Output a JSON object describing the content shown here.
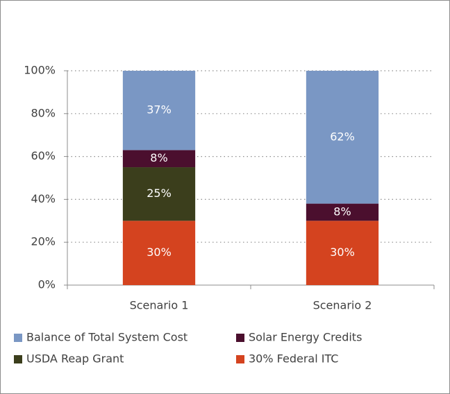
{
  "chart_data": {
    "type": "stacked_bar",
    "categories": [
      "Scenario 1",
      "Scenario 2"
    ],
    "series": [
      {
        "name": "30% Federal ITC",
        "color": "#d4431f",
        "values": [
          30,
          30
        ],
        "value_labels": [
          "30%",
          "30%"
        ]
      },
      {
        "name": "USDA Reap Grant",
        "color": "#3b3e1c",
        "values": [
          25,
          null
        ],
        "value_labels": [
          "25%",
          null
        ]
      },
      {
        "name": "Solar Energy Credits",
        "color": "#4b0f2e",
        "values": [
          8,
          8
        ],
        "value_labels": [
          "8%",
          "8%"
        ]
      },
      {
        "name": "Balance of Total System Cost",
        "color": "#7a97c4",
        "values": [
          37,
          62
        ],
        "value_labels": [
          "37%",
          "62%"
        ]
      }
    ],
    "ylim": [
      0,
      100
    ],
    "yticks": [
      {
        "value": 0,
        "label": "0%"
      },
      {
        "value": 20,
        "label": "20%"
      },
      {
        "value": 40,
        "label": "40%"
      },
      {
        "value": 60,
        "label": "60%"
      },
      {
        "value": 80,
        "label": "80%"
      },
      {
        "value": 100,
        "label": "100%"
      }
    ],
    "grid": true
  }
}
